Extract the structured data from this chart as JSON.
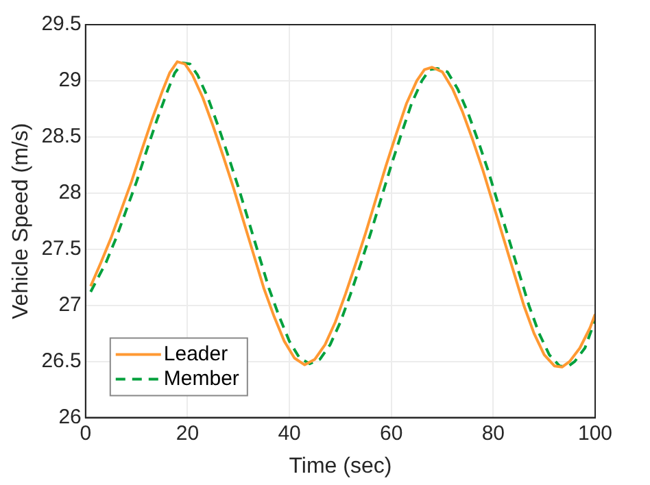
{
  "chart_data": {
    "type": "line",
    "xlabel": "Time (sec)",
    "ylabel": "Vehicle Speed (m/s)",
    "xlim": [
      0,
      100
    ],
    "xticks": [
      0,
      20,
      40,
      60,
      80,
      100
    ],
    "ylim": [
      26,
      29.5
    ],
    "yticks": [
      26,
      26.5,
      27,
      27.5,
      28,
      28.5,
      29,
      29.5
    ],
    "grid": true,
    "legend": "bottom left",
    "marker": "none",
    "series": [
      {
        "name": "Leader",
        "color": "#ff9933",
        "line_style": "solid",
        "x": [
          1,
          3,
          5,
          7,
          9,
          11,
          13,
          15,
          16.5,
          18,
          19.5,
          21,
          23,
          25,
          27,
          29,
          31,
          33,
          35,
          37,
          39,
          41,
          43,
          45,
          47,
          49,
          51,
          53,
          55,
          57,
          59,
          61,
          63,
          65,
          66.5,
          68,
          70,
          72,
          74,
          76,
          78,
          80,
          82,
          84,
          86,
          88,
          90,
          92,
          93.5,
          95,
          97,
          99,
          100
        ],
        "values": [
          27.17,
          27.38,
          27.6,
          27.85,
          28.1,
          28.38,
          28.65,
          28.9,
          29.07,
          29.17,
          29.15,
          29.05,
          28.85,
          28.6,
          28.33,
          28.05,
          27.75,
          27.45,
          27.15,
          26.9,
          26.68,
          26.53,
          26.47,
          26.52,
          26.65,
          26.85,
          27.1,
          27.37,
          27.65,
          27.95,
          28.25,
          28.53,
          28.8,
          29.0,
          29.1,
          29.12,
          29.08,
          28.93,
          28.72,
          28.47,
          28.2,
          27.9,
          27.6,
          27.3,
          27.0,
          26.75,
          26.56,
          26.46,
          26.45,
          26.5,
          26.62,
          26.8,
          26.92
        ]
      },
      {
        "name": "Member",
        "color": "#00a03c",
        "line_style": "dashed",
        "x": [
          1,
          4,
          6,
          8,
          10,
          12,
          14,
          16,
          17.5,
          19,
          20.5,
          22,
          24,
          26,
          28,
          30,
          32,
          34,
          36,
          38,
          40,
          42,
          44,
          46,
          48,
          50,
          52,
          54,
          56,
          58,
          60,
          62,
          64,
          66,
          67.5,
          69,
          71,
          73,
          75,
          77,
          79,
          81,
          83,
          85,
          87,
          89,
          91,
          93,
          94.5,
          96,
          98,
          100
        ],
        "values": [
          27.12,
          27.38,
          27.6,
          27.85,
          28.1,
          28.38,
          28.65,
          28.9,
          29.07,
          29.16,
          29.15,
          29.05,
          28.85,
          28.6,
          28.33,
          28.05,
          27.75,
          27.45,
          27.15,
          26.9,
          26.68,
          26.53,
          26.48,
          26.52,
          26.65,
          26.85,
          27.1,
          27.37,
          27.65,
          27.95,
          28.25,
          28.53,
          28.8,
          29.0,
          29.1,
          29.11,
          29.08,
          28.93,
          28.72,
          28.47,
          28.2,
          27.9,
          27.6,
          27.3,
          27.0,
          26.75,
          26.56,
          26.46,
          26.45,
          26.5,
          26.62,
          26.87
        ]
      }
    ]
  }
}
